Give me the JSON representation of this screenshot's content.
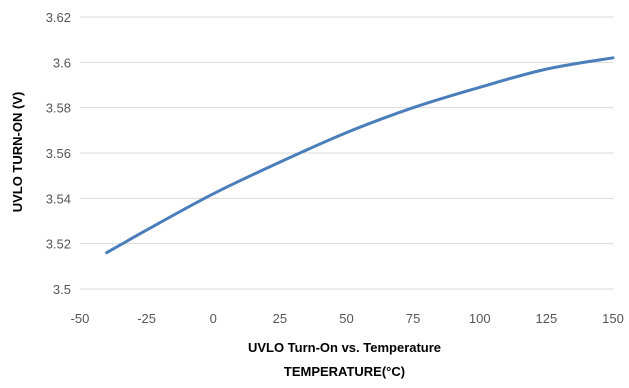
{
  "chart_data": {
    "type": "line",
    "title": "UVLO Turn-On vs. Temperature",
    "xlabel": "TEMPERATURE(°C)",
    "ylabel": "UVLO TURN-ON (V)",
    "xlim": [
      -50,
      150
    ],
    "ylim": [
      3.5,
      3.62
    ],
    "xticks": [
      -50,
      -25,
      0,
      25,
      50,
      75,
      100,
      125,
      150
    ],
    "yticks": [
      3.5,
      3.52,
      3.54,
      3.56,
      3.58,
      3.6,
      3.62
    ],
    "ytick_labels": [
      "3.5",
      "3.52",
      "3.54",
      "3.56",
      "3.58",
      "3.6",
      "3.62"
    ],
    "grid": "horizontal",
    "series": [
      {
        "color": "#4a7ebb",
        "x": [
          -40,
          -25,
          0,
          25,
          50,
          75,
          100,
          125,
          150
        ],
        "y": [
          3.516,
          3.526,
          3.542,
          3.556,
          3.569,
          3.58,
          3.589,
          3.597,
          3.602
        ]
      }
    ]
  }
}
